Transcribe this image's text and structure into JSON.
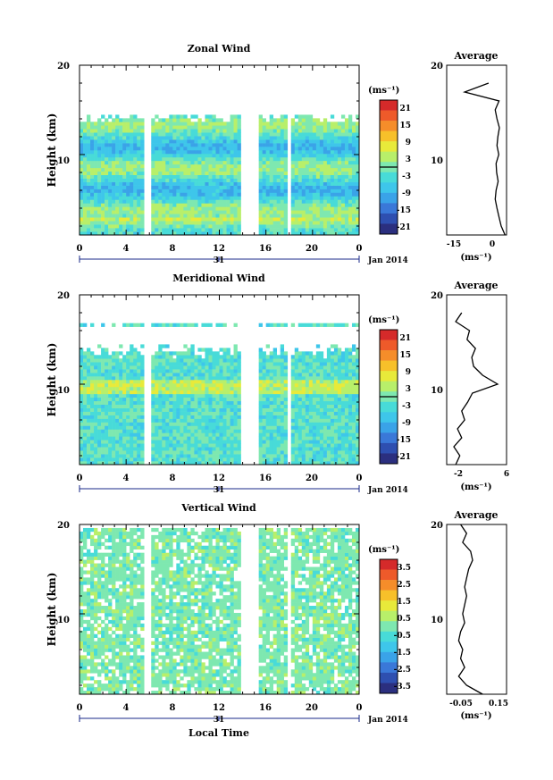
{
  "footer_label": "Local Time",
  "date_label": "Jan 2014",
  "day_label": "31",
  "unit_label": "(ms⁻¹)",
  "colormap": [
    "#2b2f7f",
    "#2e4fb0",
    "#3a78d8",
    "#3aa3e8",
    "#3ec6ea",
    "#48dbd8",
    "#7ee8b0",
    "#b8ef6a",
    "#e8ea3a",
    "#f7c02a",
    "#f58d2a",
    "#ee5a2a",
    "#d52a2a"
  ],
  "chart_data": [
    {
      "type": "heatmap",
      "title": "Zonal Wind",
      "ylabel": "Height (km)",
      "xlabel": "",
      "ylim": [
        1,
        20
      ],
      "y_ticks": [
        "10",
        "20"
      ],
      "xlim": [
        0,
        24
      ],
      "x_ticks": [
        "0",
        "4",
        "8",
        "12",
        "16",
        "20",
        "0"
      ],
      "colorbar": {
        "label": "(ms⁻¹)",
        "ticks": [
          "21",
          "15",
          "9",
          "3",
          "-3",
          "-9",
          "-15",
          "-21"
        ],
        "range": [
          -24,
          24
        ]
      },
      "data_gaps_hours": [
        [
          5.6,
          6.0
        ],
        [
          14.0,
          15.3
        ],
        [
          17.7,
          18.2
        ]
      ],
      "profile": {
        "title": "Average",
        "xlim": [
          -18,
          2
        ],
        "x_ticks": [
          "-15",
          "0"
        ],
        "xlabel": "(ms⁻¹)",
        "y": [
          1,
          2,
          3,
          4,
          5,
          6,
          7,
          8,
          9,
          10,
          11,
          12,
          13,
          14,
          15,
          16,
          17,
          18
        ],
        "x": [
          1.5,
          0.2,
          -0.5,
          -1.2,
          -1.8,
          -1.5,
          -0.8,
          -1.3,
          -1.5,
          -0.6,
          -1.2,
          -0.9,
          -0.4,
          -1.2,
          -1.8,
          -0.5,
          -12,
          -4
        ]
      }
    },
    {
      "type": "heatmap",
      "title": "Meridional Wind",
      "ylabel": "Height (km)",
      "xlabel": "",
      "ylim": [
        1,
        20
      ],
      "y_ticks": [
        "10",
        "20"
      ],
      "xlim": [
        0,
        24
      ],
      "x_ticks": [
        "0",
        "4",
        "8",
        "12",
        "16",
        "20",
        "0"
      ],
      "colorbar": {
        "label": "(ms⁻¹)",
        "ticks": [
          "21",
          "15",
          "9",
          "3",
          "-3",
          "-9",
          "-15",
          "-21"
        ],
        "range": [
          -24,
          24
        ]
      },
      "data_gaps_hours": [
        [
          5.6,
          6.0
        ],
        [
          14.0,
          15.3
        ],
        [
          17.7,
          18.2
        ]
      ],
      "profile": {
        "title": "Average",
        "xlim": [
          -4,
          6
        ],
        "x_ticks": [
          "-2",
          "6"
        ],
        "xlabel": "(ms⁻¹)",
        "y": [
          1,
          2,
          3,
          4,
          5,
          6,
          7,
          8,
          9,
          10,
          11,
          12,
          13,
          14,
          15,
          16,
          17,
          18
        ],
        "x": [
          -2.5,
          -1.8,
          -2.8,
          -1.5,
          -2.2,
          -1.0,
          -1.5,
          -0.5,
          0.3,
          4.5,
          2.0,
          0.5,
          0.2,
          0.8,
          -0.6,
          -0.2,
          -2.5,
          -1.5
        ]
      }
    },
    {
      "type": "heatmap",
      "title": "Vertical Wind",
      "ylabel": "Height (km)",
      "xlabel": "Local Time",
      "ylim": [
        1,
        20
      ],
      "y_ticks": [
        "10",
        "20"
      ],
      "xlim": [
        0,
        24
      ],
      "x_ticks": [
        "0",
        "4",
        "8",
        "12",
        "16",
        "20",
        "0"
      ],
      "colorbar": {
        "label": "(ms⁻¹)",
        "ticks": [
          "3.5",
          "2.5",
          "1.5",
          "0.5",
          "-0.5",
          "-1.5",
          "-2.5",
          "-3.5"
        ],
        "range": [
          -4,
          4
        ]
      },
      "data_gaps_hours": [
        [
          5.6,
          6.0
        ],
        [
          14.0,
          15.3
        ],
        [
          17.7,
          18.2
        ]
      ],
      "profile": {
        "title": "Average",
        "xlim": [
          -0.1,
          0.2
        ],
        "x_ticks": [
          "-0.05",
          "0.15"
        ],
        "xlabel": "(ms⁻¹)",
        "y": [
          1,
          2,
          3,
          4,
          5,
          6,
          7,
          8,
          9,
          10,
          11,
          12,
          13,
          14,
          15,
          16,
          17,
          18,
          19,
          20
        ],
        "x": [
          0.08,
          0.0,
          -0.04,
          -0.01,
          -0.03,
          -0.02,
          -0.04,
          -0.03,
          -0.01,
          -0.02,
          -0.01,
          0.0,
          -0.01,
          0.0,
          0.01,
          0.03,
          0.02,
          -0.02,
          0.0,
          -0.03
        ]
      }
    }
  ]
}
